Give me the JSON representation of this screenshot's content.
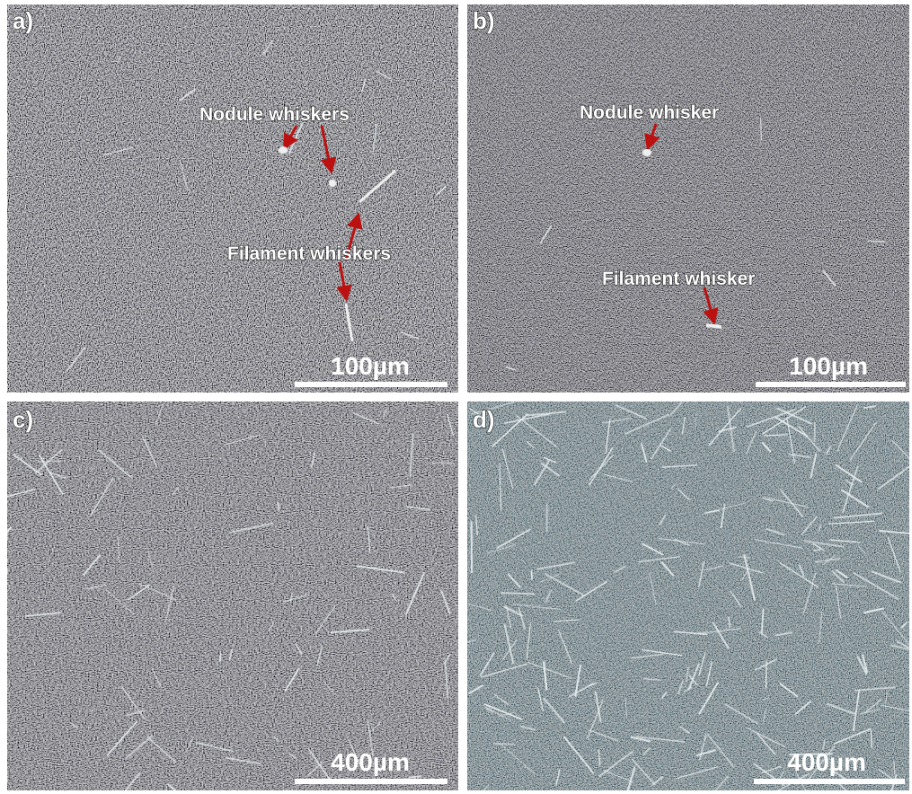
{
  "panels": [
    {
      "label": "a)",
      "annotations": [
        "Nodule whiskers",
        "Filament whiskers"
      ],
      "scale_bar": "100µm"
    },
    {
      "label": "b)",
      "annotations": [
        "Nodule whisker",
        "Filament whisker"
      ],
      "scale_bar": "100µm"
    },
    {
      "label": "c)",
      "scale_bar": "400µm"
    },
    {
      "label": "d)",
      "scale_bar": "400µm"
    }
  ]
}
